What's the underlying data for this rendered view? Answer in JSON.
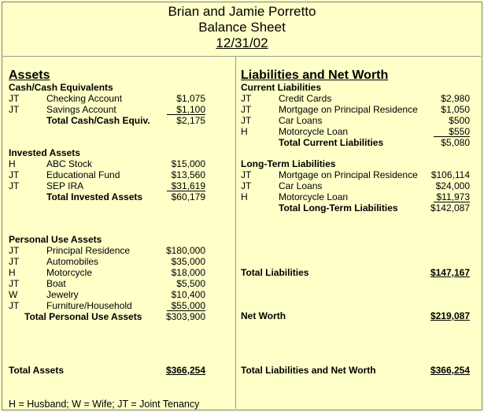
{
  "header": {
    "names": "Brian and Jamie Porretto",
    "title": "Balance Sheet",
    "date": "12/31/02"
  },
  "assets": {
    "heading": "Assets",
    "cash": {
      "heading": "Cash/Cash Equivalents",
      "items": [
        {
          "owner": "JT",
          "name": "Checking Account",
          "amount": "$1,075"
        },
        {
          "owner": "JT",
          "name": "Savings Account",
          "amount": "$1,100"
        }
      ],
      "total_label": "Total Cash/Cash Equiv.",
      "total": "$2,175"
    },
    "invested": {
      "heading": "Invested Assets",
      "items": [
        {
          "owner": "H",
          "name": "ABC Stock",
          "amount": "$15,000"
        },
        {
          "owner": "JT",
          "name": "Educational Fund",
          "amount": "$13,560"
        },
        {
          "owner": "JT",
          "name": "SEP IRA",
          "amount": "$31,619"
        }
      ],
      "total_label": "Total Invested Assets",
      "total": "$60,179"
    },
    "personal": {
      "heading": "Personal Use Assets",
      "items": [
        {
          "owner": "JT",
          "name": "Principal Residence",
          "amount": "$180,000"
        },
        {
          "owner": "JT",
          "name": "Automobiles",
          "amount": "$35,000"
        },
        {
          "owner": "H",
          "name": "Motorcycle",
          "amount": "$18,000"
        },
        {
          "owner": "JT",
          "name": "Boat",
          "amount": "$5,500"
        },
        {
          "owner": "W",
          "name": "Jewelry",
          "amount": "$10,400"
        },
        {
          "owner": "JT",
          "name": "Furniture/Household",
          "amount": "$55,000"
        }
      ],
      "total_label": "Total Personal Use Assets",
      "total": "$303,900"
    },
    "total_label": "Total Assets",
    "total": "$366,254"
  },
  "liabilities": {
    "heading": "Liabilities and Net Worth",
    "current": {
      "heading": "Current Liabilities",
      "items": [
        {
          "owner": "JT",
          "name": "Credit Cards",
          "amount": "$2,980"
        },
        {
          "owner": "JT",
          "name": "Mortgage on Principal Residence",
          "amount": "$1,050"
        },
        {
          "owner": "JT",
          "name": "Car Loans",
          "amount": "$500"
        },
        {
          "owner": "H",
          "name": "Motorcycle Loan",
          "amount": "$550"
        }
      ],
      "total_label": "Total Current Liabilities",
      "total": "$5,080"
    },
    "long_term": {
      "heading": "Long-Term Liabilities",
      "items": [
        {
          "owner": "JT",
          "name": "Mortgage on Principal Residence",
          "amount": "$106,114"
        },
        {
          "owner": "JT",
          "name": "Car Loans",
          "amount": "$24,000"
        },
        {
          "owner": "H",
          "name": "Motorcycle Loan",
          "amount": "$11,973"
        }
      ],
      "total_label": "Total Long-Term Liabilities",
      "total": "$142,087"
    },
    "total_label": "Total Liabilities",
    "total": "$147,167",
    "net_worth_label": "Net Worth",
    "net_worth": "$219,087",
    "grand_total_label": "Total Liabilities and Net Worth",
    "grand_total": "$366,254"
  },
  "footnote": "H = Husband; W = Wife; JT = Joint Tenancy"
}
